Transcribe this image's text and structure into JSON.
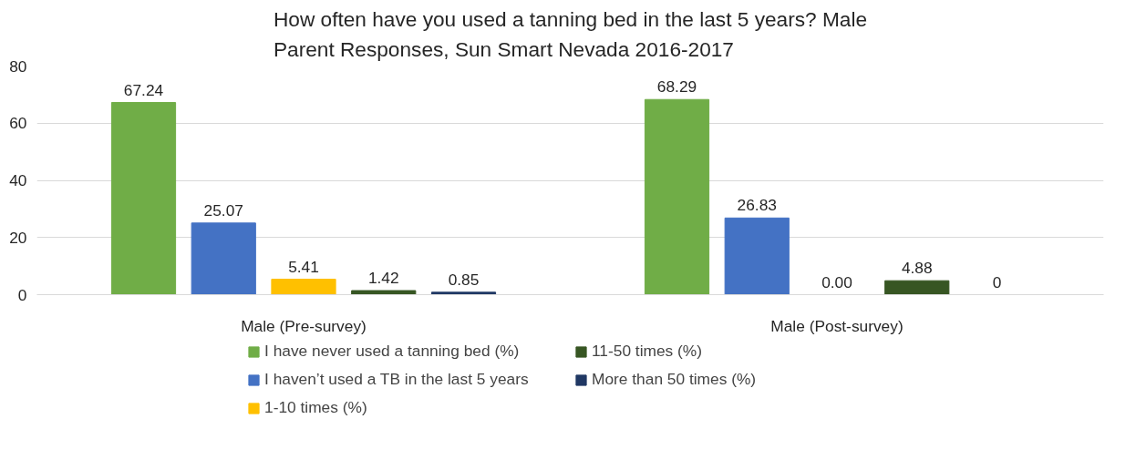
{
  "chart_data": {
    "type": "bar",
    "title": "How often have you used a tanning bed in the last 5 years? Male\nParent  Responses, Sun Smart Nevada 2016-2017",
    "categories": [
      "Male (Pre-survey)",
      "Male (Post-survey)"
    ],
    "series": [
      {
        "name": "I have never used a tanning bed (%)",
        "color": "#70ad47",
        "values": [
          67.24,
          68.29
        ],
        "value_labels": [
          "67.24",
          "68.29"
        ]
      },
      {
        "name": "I haven’t used a TB in the last 5 years",
        "color": "#4472c4",
        "values": [
          25.07,
          26.83
        ],
        "value_labels": [
          "25.07",
          "26.83"
        ]
      },
      {
        "name": "1-10 times (%)",
        "color": "#ffc000",
        "values": [
          5.41,
          0.0
        ],
        "value_labels": [
          "5.41",
          "0.00"
        ]
      },
      {
        "name": "11-50 times (%)",
        "color": "#375623",
        "values": [
          1.42,
          4.88
        ],
        "value_labels": [
          "1.42",
          "4.88"
        ]
      },
      {
        "name": "More than 50 times (%)",
        "color": "#203864",
        "values": [
          0.85,
          0
        ],
        "value_labels": [
          "0.85",
          "0"
        ]
      }
    ],
    "ylim": [
      0,
      80
    ],
    "yticks": [
      0,
      20,
      40,
      60,
      80
    ],
    "grid": "y",
    "legend": "bottom"
  }
}
